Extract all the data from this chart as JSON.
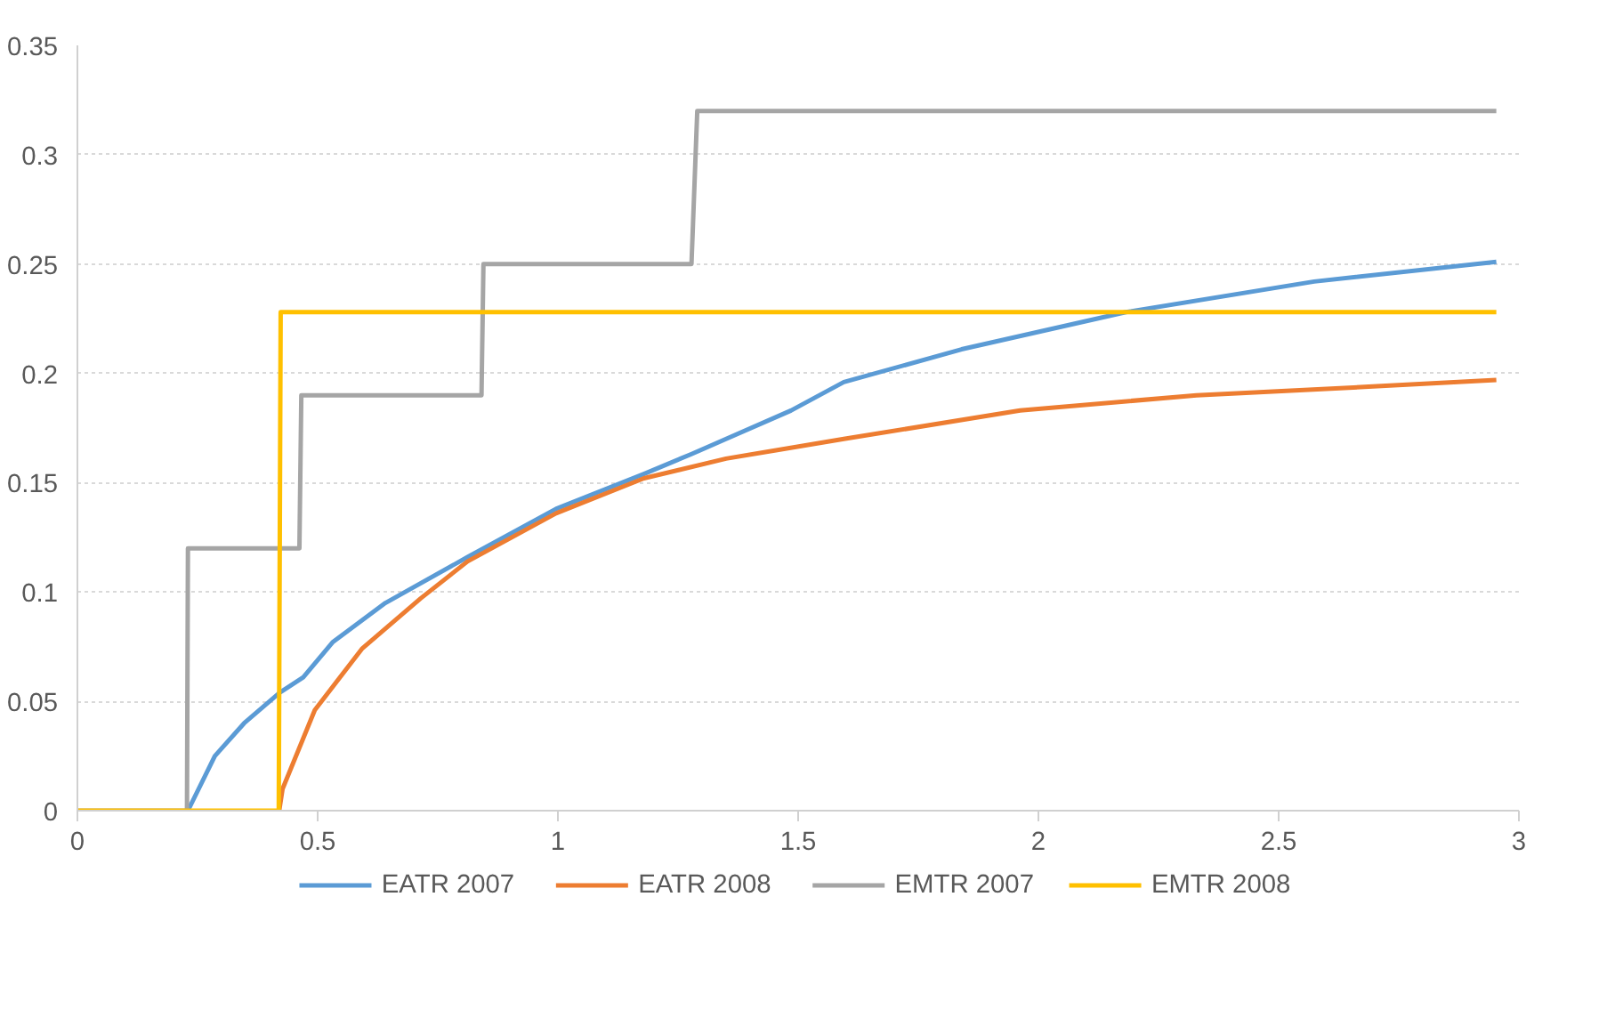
{
  "chart_data": {
    "type": "line",
    "xlim": [
      0,
      3
    ],
    "ylim": [
      0,
      0.35
    ],
    "xticks": [
      0,
      0.5,
      1,
      1.5,
      2,
      2.5,
      3
    ],
    "yticks": [
      0,
      0.05,
      0.1,
      0.15,
      0.2,
      0.25,
      0.3,
      0.35
    ],
    "grid": "y",
    "legend": "bottom",
    "marker": "none",
    "line_style": "solid",
    "series": [
      {
        "name": "EATR 2007",
        "color": "#5b9bd5",
        "x": [
          0.23,
          0.286,
          0.347,
          0.421,
          0.47,
          0.531,
          0.641,
          0.812,
          0.996,
          1.179,
          1.277,
          1.35,
          1.485,
          1.595,
          1.84,
          2.182,
          2.574,
          2.953
        ],
        "values": [
          0,
          0.025,
          0.04,
          0.054,
          0.061,
          0.077,
          0.095,
          0.116,
          0.138,
          0.154,
          0.163,
          0.17,
          0.183,
          0.196,
          0.211,
          0.228,
          0.242,
          0.251
        ]
      },
      {
        "name": "EATR 2008",
        "color": "#ed7d31",
        "x": [
          0.42,
          0.427,
          0.494,
          0.592,
          0.714,
          0.812,
          0.996,
          1.179,
          1.35,
          1.595,
          1.962,
          2.329,
          2.696,
          2.953
        ],
        "values": [
          0,
          0.01,
          0.046,
          0.074,
          0.097,
          0.114,
          0.136,
          0.152,
          0.161,
          0.17,
          0.183,
          0.19,
          0.194,
          0.197
        ]
      },
      {
        "name": "EMTR 2007",
        "color": "#a5a5a5",
        "x": [
          0,
          0.228,
          0.23,
          0.462,
          0.466,
          0.841,
          0.845,
          1.278,
          1.29,
          2.953
        ],
        "values": [
          0,
          0,
          0.12,
          0.12,
          0.19,
          0.19,
          0.25,
          0.25,
          0.32,
          0.32
        ]
      },
      {
        "name": "EMTR 2008",
        "color": "#ffc000",
        "x": [
          0,
          0.419,
          0.423,
          2.953
        ],
        "values": [
          0,
          0,
          0.228,
          0.228
        ]
      }
    ]
  }
}
